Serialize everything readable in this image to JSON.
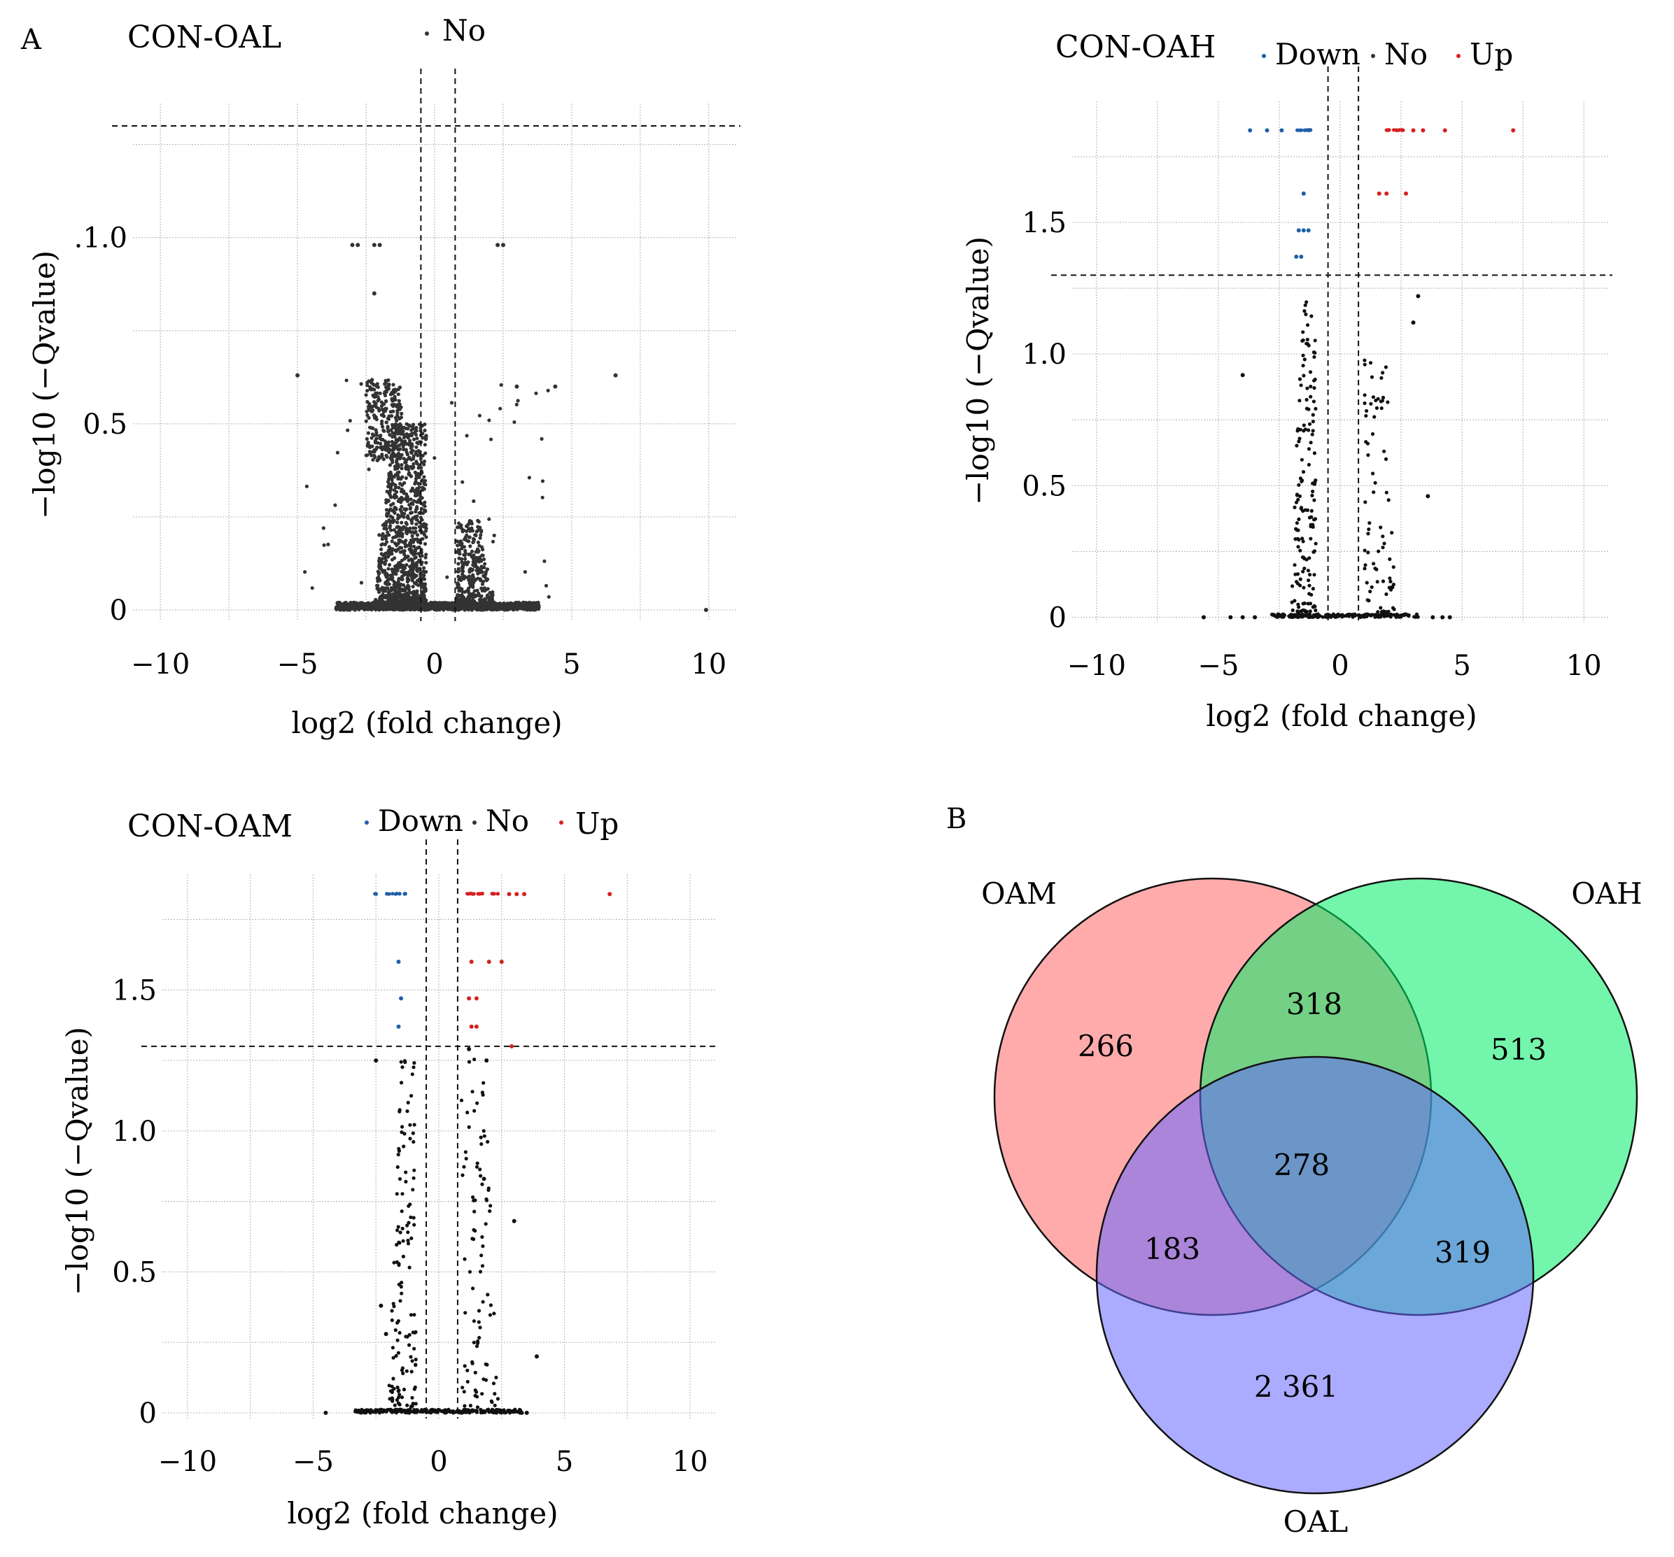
{
  "figure": {
    "panel_a_letter": "A",
    "panel_b_letter": "B"
  },
  "chart_data": [
    {
      "type": "scatter",
      "id": "con-oal",
      "title": "CON-OAL",
      "xlabel": "log2 (fold change)",
      "ylabel": "−log10 (−Qvalue)",
      "xlim": [
        -11,
        11
      ],
      "ylim": [
        -0.03,
        1.36
      ],
      "xticks": [
        -10,
        -5,
        0,
        5,
        10
      ],
      "xtick_labels": [
        "−10",
        "−5",
        "0",
        "5",
        "10"
      ],
      "yticks": [
        0,
        0.5,
        1.0
      ],
      "ytick_labels": [
        "0",
        "0.5",
        ".1.0"
      ],
      "threshold_x": [
        -0.5,
        0.75
      ],
      "threshold_y": 1.3,
      "legend": [
        {
          "label": "No",
          "color": "#333333"
        }
      ],
      "colors": {
        "No": "#333333",
        "Down": "#1f5fa8",
        "Up": "#d62020"
      },
      "seed": 11,
      "clusters": [
        {
          "n": 1200,
          "x": [
            -3.6,
            3.8
          ],
          "y": [
            0.0,
            0.02
          ],
          "c": "No"
        },
        {
          "n": 950,
          "x": [
            -2.2,
            -0.3
          ],
          "y": [
            0.02,
            0.5
          ],
          "c": "No",
          "cone": true
        },
        {
          "n": 260,
          "x": [
            -2.5,
            -1.2
          ],
          "y": [
            0.4,
            0.62
          ],
          "c": "No"
        },
        {
          "n": 300,
          "x": [
            0.8,
            2.2
          ],
          "y": [
            0.02,
            0.24
          ],
          "c": "No",
          "cone": true
        },
        {
          "n": 45,
          "x": [
            -4.8,
            4.2
          ],
          "y": [
            0.02,
            0.62
          ],
          "c": "No"
        }
      ],
      "points": [
        {
          "x": -3.0,
          "y": 0.98,
          "c": "No"
        },
        {
          "x": -2.8,
          "y": 0.98,
          "c": "No"
        },
        {
          "x": -2.2,
          "y": 0.98,
          "c": "No"
        },
        {
          "x": -2.0,
          "y": 0.98,
          "c": "No"
        },
        {
          "x": 2.3,
          "y": 0.98,
          "c": "No"
        },
        {
          "x": 2.5,
          "y": 0.98,
          "c": "No"
        },
        {
          "x": -2.2,
          "y": 0.85,
          "c": "No"
        },
        {
          "x": -5.0,
          "y": 0.63,
          "c": "No"
        },
        {
          "x": 6.6,
          "y": 0.63,
          "c": "No"
        },
        {
          "x": 4.4,
          "y": 0.6,
          "c": "No"
        },
        {
          "x": 3.0,
          "y": 0.6,
          "c": "No"
        },
        {
          "x": 9.9,
          "y": 0.0,
          "c": "No"
        }
      ]
    },
    {
      "type": "scatter",
      "id": "con-oah",
      "title": "CON-OAH",
      "xlabel": "log2 (fold change)",
      "ylabel": "−log10 (−Qvalue)",
      "xlim": [
        -11,
        11
      ],
      "ylim": [
        -0.02,
        1.96
      ],
      "xticks": [
        -10,
        -5,
        0,
        5,
        10
      ],
      "xtick_labels": [
        "−10",
        "−5",
        "0",
        "5",
        "10"
      ],
      "yticks": [
        0,
        0.5,
        1.0,
        1.5
      ],
      "ytick_labels": [
        "0",
        "0.5",
        "1.0",
        "1.5"
      ],
      "threshold_x": [
        -0.5,
        0.75
      ],
      "threshold_y": 1.3,
      "legend": [
        {
          "label": "Down",
          "color": "#1f5fa8"
        },
        {
          "label": "No",
          "color": "#333333"
        },
        {
          "label": "Up",
          "color": "#d62020"
        }
      ],
      "colors": {
        "No": "#111111",
        "Down": "#1f5fa8",
        "Up": "#d62020"
      },
      "seed": 23,
      "clusters": [
        {
          "n": 190,
          "x": [
            -2.8,
            3.2
          ],
          "y": [
            0.0,
            0.012
          ],
          "c": "No"
        },
        {
          "n": 150,
          "x": [
            -2.0,
            -1.0
          ],
          "y": [
            0.02,
            1.2
          ],
          "c": "No",
          "cone": true
        },
        {
          "n": 75,
          "x": [
            1.0,
            2.4
          ],
          "y": [
            0.02,
            1.0
          ],
          "c": "No",
          "cone": true
        },
        {
          "n": 14,
          "x": [
            -1.9,
            -1.2
          ],
          "y": [
            1.85,
            1.852
          ],
          "c": "Down"
        },
        {
          "n": 16,
          "x": [
            1.8,
            2.6
          ],
          "y": [
            1.85,
            1.852
          ],
          "c": "Up"
        }
      ],
      "points": [
        {
          "x": -5.6,
          "y": 0.0,
          "c": "No"
        },
        {
          "x": -4.5,
          "y": 0.0,
          "c": "No"
        },
        {
          "x": -4.0,
          "y": 0.0,
          "c": "No"
        },
        {
          "x": -3.5,
          "y": 0.0,
          "c": "No"
        },
        {
          "x": 3.8,
          "y": 0.0,
          "c": "No"
        },
        {
          "x": 4.2,
          "y": 0.0,
          "c": "No"
        },
        {
          "x": 4.5,
          "y": 0.0,
          "c": "No"
        },
        {
          "x": -4.0,
          "y": 0.92,
          "c": "No"
        },
        {
          "x": 3.6,
          "y": 0.46,
          "c": "No"
        },
        {
          "x": 3.0,
          "y": 1.12,
          "c": "No"
        },
        {
          "x": 3.2,
          "y": 1.22,
          "c": "No"
        },
        {
          "x": -3.7,
          "y": 1.85,
          "c": "Down"
        },
        {
          "x": -3.0,
          "y": 1.85,
          "c": "Down"
        },
        {
          "x": -2.4,
          "y": 1.85,
          "c": "Down"
        },
        {
          "x": -1.5,
          "y": 1.61,
          "c": "Down"
        },
        {
          "x": -1.7,
          "y": 1.47,
          "c": "Down"
        },
        {
          "x": -1.5,
          "y": 1.47,
          "c": "Down"
        },
        {
          "x": -1.3,
          "y": 1.47,
          "c": "Down"
        },
        {
          "x": -1.8,
          "y": 1.37,
          "c": "Down"
        },
        {
          "x": -1.6,
          "y": 1.37,
          "c": "Down"
        },
        {
          "x": 3.0,
          "y": 1.85,
          "c": "Up"
        },
        {
          "x": 3.4,
          "y": 1.85,
          "c": "Up"
        },
        {
          "x": 4.3,
          "y": 1.85,
          "c": "Up"
        },
        {
          "x": 7.1,
          "y": 1.85,
          "c": "Up"
        },
        {
          "x": 1.6,
          "y": 1.61,
          "c": "Up"
        },
        {
          "x": 1.9,
          "y": 1.61,
          "c": "Up"
        },
        {
          "x": 2.7,
          "y": 1.61,
          "c": "Up"
        }
      ]
    },
    {
      "type": "scatter",
      "id": "con-oam",
      "title": "CON-OAM",
      "xlabel": "log2 (fold change)",
      "ylabel": "−log10 (−Qvalue)",
      "xlim": [
        -11,
        11
      ],
      "ylim": [
        -0.02,
        1.91
      ],
      "xticks": [
        -10,
        -5,
        0,
        5,
        10
      ],
      "xtick_labels": [
        "−10",
        "−5",
        "0",
        "5",
        "10"
      ],
      "yticks": [
        0,
        0.5,
        1.0,
        1.5
      ],
      "ytick_labels": [
        "0",
        "0.5",
        "1.0",
        "1.5"
      ],
      "threshold_x": [
        -0.5,
        0.75
      ],
      "threshold_y": 1.3,
      "legend": [
        {
          "label": "Down",
          "color": "#1f5fa8"
        },
        {
          "label": "No",
          "color": "#333333"
        },
        {
          "label": "Up",
          "color": "#d62020"
        }
      ],
      "colors": {
        "No": "#111111",
        "Down": "#1f5fa8",
        "Up": "#d62020"
      },
      "seed": 37,
      "clusters": [
        {
          "n": 260,
          "x": [
            -3.4,
            3.4
          ],
          "y": [
            0.0,
            0.012
          ],
          "c": "No"
        },
        {
          "n": 130,
          "x": [
            -2.0,
            -0.9
          ],
          "y": [
            0.02,
            1.26
          ],
          "c": "No",
          "cone": true
        },
        {
          "n": 90,
          "x": [
            0.9,
            2.4
          ],
          "y": [
            0.02,
            1.26
          ],
          "c": "No",
          "cone": true
        },
        {
          "n": 14,
          "x": [
            -2.6,
            -1.3
          ],
          "y": [
            1.84,
            1.842
          ],
          "c": "Down"
        },
        {
          "n": 16,
          "x": [
            1.1,
            2.4
          ],
          "y": [
            1.84,
            1.842
          ],
          "c": "Up"
        }
      ],
      "points": [
        {
          "x": -4.5,
          "y": 0.0,
          "c": "No"
        },
        {
          "x": 3.3,
          "y": 0.0,
          "c": "No"
        },
        {
          "x": 3.5,
          "y": 0.0,
          "c": "No"
        },
        {
          "x": -2.5,
          "y": 1.25,
          "c": "No"
        },
        {
          "x": -2.3,
          "y": 0.38,
          "c": "No"
        },
        {
          "x": -2.1,
          "y": 0.28,
          "c": "No"
        },
        {
          "x": 3.0,
          "y": 0.68,
          "c": "No"
        },
        {
          "x": 3.9,
          "y": 0.2,
          "c": "No"
        },
        {
          "x": 1.8,
          "y": 0.83,
          "c": "No"
        },
        {
          "x": 1.9,
          "y": 1.25,
          "c": "No"
        },
        {
          "x": 1.2,
          "y": 1.29,
          "c": "No"
        },
        {
          "x": -1.6,
          "y": 1.6,
          "c": "Down"
        },
        {
          "x": -1.5,
          "y": 1.47,
          "c": "Down"
        },
        {
          "x": -1.6,
          "y": 1.37,
          "c": "Down"
        },
        {
          "x": 2.8,
          "y": 1.84,
          "c": "Up"
        },
        {
          "x": 3.1,
          "y": 1.84,
          "c": "Up"
        },
        {
          "x": 3.4,
          "y": 1.84,
          "c": "Up"
        },
        {
          "x": 6.8,
          "y": 1.84,
          "c": "Up"
        },
        {
          "x": 1.3,
          "y": 1.6,
          "c": "Up"
        },
        {
          "x": 2.0,
          "y": 1.6,
          "c": "Up"
        },
        {
          "x": 2.5,
          "y": 1.6,
          "c": "Up"
        },
        {
          "x": 1.2,
          "y": 1.47,
          "c": "Up"
        },
        {
          "x": 1.5,
          "y": 1.47,
          "c": "Up"
        },
        {
          "x": 1.3,
          "y": 1.37,
          "c": "Up"
        },
        {
          "x": 1.5,
          "y": 1.37,
          "c": "Up"
        },
        {
          "x": 2.9,
          "y": 1.3,
          "c": "Up"
        }
      ]
    },
    {
      "type": "venn",
      "id": "venn",
      "sets": [
        {
          "name": "OAM",
          "color": "#ff6666"
        },
        {
          "name": "OAH",
          "color": "#00ee66"
        },
        {
          "name": "OAL",
          "color": "#6666ff"
        }
      ],
      "regions": {
        "OAM_only": "266",
        "OAH_only": "513",
        "OAL_only": "2 361",
        "OAM_OAH": "318",
        "OAM_OAL": "183",
        "OAH_OAL": "319",
        "all": "278"
      }
    }
  ]
}
